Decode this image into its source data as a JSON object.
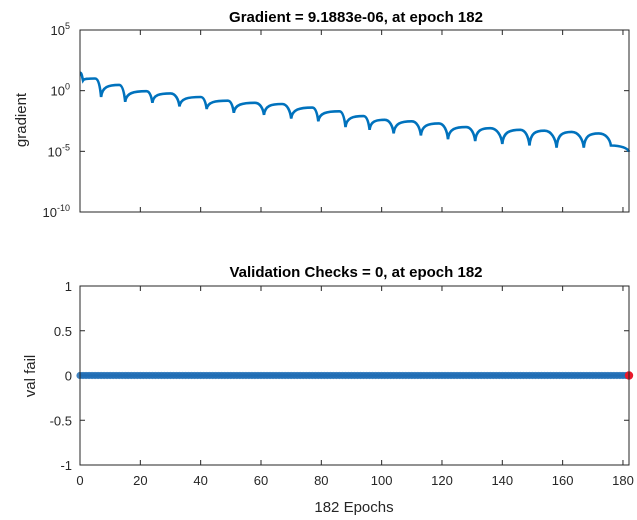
{
  "chart_data": [
    {
      "type": "line",
      "title": "Gradient = 9.1883e-06, at epoch 182",
      "xlabel": "",
      "ylabel": "gradient",
      "yscale": "log",
      "xlim": [
        0,
        182
      ],
      "ylim": [
        1e-10,
        100000.0
      ],
      "x_ticks": [
        0,
        20,
        40,
        60,
        80,
        100,
        120,
        140,
        160,
        180
      ],
      "y_ticks": [
        {
          "base": "10",
          "exp": "5"
        },
        {
          "base": "10",
          "exp": "0"
        },
        {
          "base": "10",
          "exp": "-5"
        },
        {
          "base": "10",
          "exp": "-10"
        }
      ],
      "x_tick_labels_visible": false,
      "grid": false,
      "line_color": "#0072BD",
      "series": [
        {
          "x": [
            0,
            1,
            5,
            7,
            13,
            15,
            22,
            24,
            30,
            33,
            40,
            42,
            49,
            51,
            58,
            61,
            67,
            70,
            77,
            79,
            86,
            88,
            94,
            96,
            101,
            104,
            110,
            113,
            119,
            122,
            128,
            131,
            136,
            140,
            146,
            149,
            154,
            158,
            163,
            167,
            172,
            176,
            182
          ],
          "y": [
            30,
            7,
            10,
            0.3,
            3,
            0.12,
            0.9,
            0.1,
            0.6,
            0.05,
            0.3,
            0.03,
            0.15,
            0.015,
            0.1,
            0.01,
            0.08,
            0.005,
            0.04,
            0.003,
            0.02,
            0.001,
            0.008,
            0.0006,
            0.004,
            0.0003,
            0.003,
            0.0002,
            0.002,
            0.0001,
            0.001,
            7e-05,
            0.0008,
            4e-05,
            0.0006,
            3e-05,
            0.0005,
            2e-05,
            0.0004,
            2e-05,
            0.0003,
            3e-05,
            9.2e-06
          ]
        }
      ]
    },
    {
      "type": "scatter",
      "title": "Validation Checks = 0, at epoch 182",
      "xlabel": "182 Epochs",
      "ylabel": "val fail",
      "xlim": [
        0,
        182
      ],
      "ylim": [
        -1,
        1
      ],
      "x_ticks": [
        0,
        20,
        40,
        60,
        80,
        100,
        120,
        140,
        160,
        180
      ],
      "y_ticks": [
        1,
        0.5,
        0,
        -0.5,
        -1
      ],
      "grid": false,
      "marker_color": "#1E6DB5",
      "line_color": "#D95319",
      "series": [
        {
          "x_range": [
            0,
            182
          ],
          "value": 0,
          "final_marker_color": "#E8182A"
        }
      ]
    }
  ]
}
